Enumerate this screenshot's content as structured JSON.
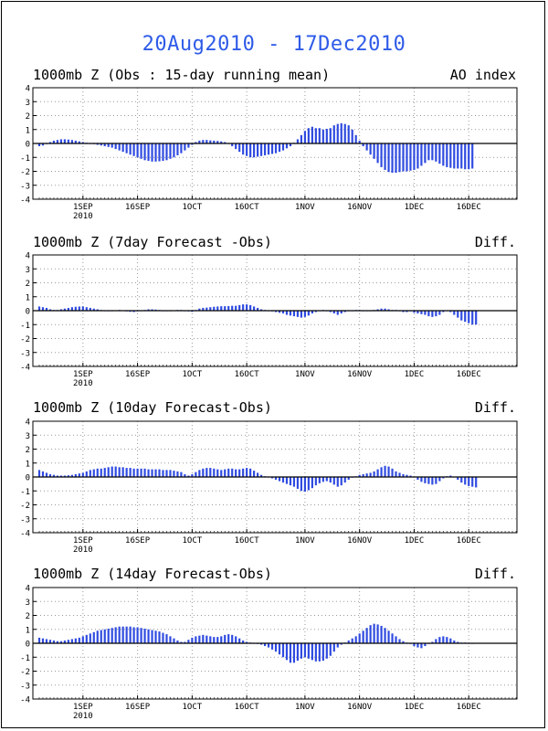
{
  "page_title": "20Aug2010 - 17Dec2010",
  "colors": {
    "bar": "#2f4be0",
    "title": "#2e5be8",
    "grid": "#9a9a9a",
    "axis": "#000000"
  },
  "chart_data": [
    {
      "type": "bar",
      "title": "1000mb Z (Obs : 15-day running mean)",
      "label_right": "AO index",
      "ylim": [
        -4,
        4
      ],
      "yticks": [
        "4",
        "3",
        "2",
        "1",
        "0",
        "-1",
        "-2",
        "-3",
        "-4"
      ],
      "xticks": [
        "1SEP",
        "16SEP",
        "1OCT",
        "16OCT",
        "1NOV",
        "16NOV",
        "1DEC",
        "16DEC"
      ],
      "xtick_sub": "2010",
      "x_start": "2010-08-20",
      "x_end": "2010-12-17",
      "grid": true,
      "values": [
        -0.2,
        -0.15,
        -0.05,
        0.1,
        0.2,
        0.25,
        0.3,
        0.3,
        0.28,
        0.25,
        0.2,
        0.15,
        0.1,
        0.05,
        0.0,
        -0.05,
        -0.1,
        -0.15,
        -0.2,
        -0.25,
        -0.3,
        -0.4,
        -0.5,
        -0.6,
        -0.7,
        -0.8,
        -0.9,
        -1.0,
        -1.1,
        -1.2,
        -1.25,
        -1.3,
        -1.3,
        -1.28,
        -1.25,
        -1.2,
        -1.1,
        -1.0,
        -0.85,
        -0.7,
        -0.5,
        -0.3,
        -0.1,
        0.1,
        0.2,
        0.25,
        0.25,
        0.22,
        0.2,
        0.18,
        0.15,
        0.1,
        0.0,
        -0.2,
        -0.4,
        -0.6,
        -0.8,
        -0.9,
        -1.0,
        -1.0,
        -0.95,
        -0.9,
        -0.85,
        -0.8,
        -0.75,
        -0.7,
        -0.6,
        -0.5,
        -0.35,
        -0.2,
        0.05,
        0.3,
        0.6,
        0.9,
        1.1,
        1.2,
        1.1,
        1.1,
        1.0,
        1.05,
        1.1,
        1.3,
        1.4,
        1.45,
        1.4,
        1.3,
        1.0,
        0.6,
        0.2,
        -0.2,
        -0.5,
        -0.8,
        -1.1,
        -1.4,
        -1.7,
        -1.9,
        -2.05,
        -2.1,
        -2.1,
        -2.05,
        -2.0,
        -2.0,
        -1.95,
        -1.9,
        -1.8,
        -1.6,
        -1.4,
        -1.2,
        -1.2,
        -1.3,
        -1.45,
        -1.6,
        -1.7,
        -1.75,
        -1.8,
        -1.8,
        -1.8,
        -1.85,
        -1.85,
        -1.8
      ]
    },
    {
      "type": "bar",
      "title": "1000mb Z (7day Forecast -Obs)",
      "label_right": "Diff.",
      "ylim": [
        -4,
        4
      ],
      "yticks": [
        "4",
        "3",
        "2",
        "1",
        "0",
        "-1",
        "-2",
        "-3",
        "-4"
      ],
      "xticks": [
        "1SEP",
        "16SEP",
        "1OCT",
        "16OCT",
        "1NOV",
        "16NOV",
        "1DEC",
        "16DEC"
      ],
      "xtick_sub": "2010",
      "x_start": "2010-08-20",
      "x_end": "2010-12-17",
      "grid": true,
      "values": [
        0.3,
        0.25,
        0.2,
        0.1,
        0.05,
        0.05,
        0.1,
        0.15,
        0.2,
        0.25,
        0.28,
        0.3,
        0.3,
        0.25,
        0.2,
        0.15,
        0.1,
        0.05,
        0.0,
        -0.02,
        0.0,
        0.02,
        0.05,
        0.02,
        -0.05,
        -0.08,
        -0.1,
        -0.05,
        0.0,
        0.05,
        0.1,
        0.1,
        0.08,
        0.05,
        0.0,
        0.0,
        0.0,
        0.02,
        0.05,
        0.05,
        0.0,
        -0.05,
        -0.08,
        0.05,
        0.15,
        0.2,
        0.22,
        0.25,
        0.28,
        0.3,
        0.32,
        0.32,
        0.33,
        0.35,
        0.35,
        0.4,
        0.45,
        0.45,
        0.4,
        0.3,
        0.2,
        0.1,
        0.05,
        0.0,
        -0.05,
        -0.1,
        -0.15,
        -0.2,
        -0.3,
        -0.35,
        -0.4,
        -0.45,
        -0.5,
        -0.45,
        -0.35,
        -0.2,
        -0.1,
        0.0,
        0.05,
        0.0,
        -0.1,
        -0.2,
        -0.3,
        -0.2,
        -0.1,
        0.0,
        0.0,
        0.05,
        0.05,
        0.0,
        0.0,
        0.0,
        0.05,
        0.1,
        0.15,
        0.15,
        0.1,
        0.05,
        0.05,
        0.0,
        -0.1,
        -0.1,
        -0.05,
        -0.15,
        -0.2,
        -0.25,
        -0.3,
        -0.4,
        -0.45,
        -0.4,
        -0.3,
        -0.1,
        0.0,
        -0.1,
        -0.3,
        -0.5,
        -0.7,
        -0.8,
        -0.9,
        -1.0,
        -1.0
      ]
    },
    {
      "type": "bar",
      "title": "1000mb Z (10day Forecast-Obs)",
      "label_right": "Diff.",
      "ylim": [
        -4,
        4
      ],
      "yticks": [
        "4",
        "3",
        "2",
        "1",
        "0",
        "-1",
        "-2",
        "-3",
        "-4"
      ],
      "xticks": [
        "1SEP",
        "16SEP",
        "1OCT",
        "16OCT",
        "1NOV",
        "16NOV",
        "1DEC",
        "16DEC"
      ],
      "xtick_sub": "2010",
      "x_start": "2010-08-20",
      "x_end": "2010-12-17",
      "grid": true,
      "values": [
        0.5,
        0.4,
        0.3,
        0.2,
        0.15,
        0.1,
        0.1,
        0.1,
        0.12,
        0.15,
        0.2,
        0.25,
        0.3,
        0.4,
        0.5,
        0.55,
        0.6,
        0.6,
        0.65,
        0.7,
        0.75,
        0.75,
        0.7,
        0.7,
        0.65,
        0.65,
        0.6,
        0.6,
        0.6,
        0.6,
        0.55,
        0.55,
        0.55,
        0.55,
        0.5,
        0.5,
        0.5,
        0.45,
        0.4,
        0.35,
        0.2,
        0.1,
        0.2,
        0.35,
        0.5,
        0.6,
        0.65,
        0.65,
        0.6,
        0.55,
        0.5,
        0.55,
        0.6,
        0.6,
        0.55,
        0.55,
        0.6,
        0.65,
        0.6,
        0.45,
        0.3,
        0.15,
        0.05,
        0.0,
        -0.1,
        -0.2,
        -0.3,
        -0.4,
        -0.5,
        -0.6,
        -0.7,
        -0.85,
        -1.0,
        -1.05,
        -0.95,
        -0.8,
        -0.6,
        -0.45,
        -0.35,
        -0.3,
        -0.4,
        -0.55,
        -0.7,
        -0.6,
        -0.4,
        -0.2,
        -0.05,
        0.05,
        0.15,
        0.2,
        0.25,
        0.3,
        0.4,
        0.55,
        0.7,
        0.8,
        0.75,
        0.6,
        0.4,
        0.3,
        0.2,
        0.15,
        0.1,
        0.0,
        -0.2,
        -0.35,
        -0.45,
        -0.5,
        -0.55,
        -0.5,
        -0.3,
        -0.1,
        0.05,
        0.1,
        0.0,
        -0.2,
        -0.4,
        -0.55,
        -0.65,
        -0.7,
        -0.75
      ]
    },
    {
      "type": "bar",
      "title": "1000mb Z (14day Forecast-Obs)",
      "label_right": "Diff.",
      "ylim": [
        -4,
        4
      ],
      "yticks": [
        "4",
        "3",
        "2",
        "1",
        "0",
        "-1",
        "-2",
        "-3",
        "-4"
      ],
      "xticks": [
        "1SEP",
        "16SEP",
        "1OCT",
        "16OCT",
        "1NOV",
        "16NOV",
        "1DEC",
        "16DEC"
      ],
      "xtick_sub": "2010",
      "x_start": "2010-08-20",
      "x_end": "2010-12-17",
      "grid": true,
      "values": [
        0.4,
        0.35,
        0.3,
        0.25,
        0.2,
        0.15,
        0.15,
        0.2,
        0.25,
        0.3,
        0.35,
        0.4,
        0.5,
        0.6,
        0.7,
        0.8,
        0.9,
        0.95,
        1.0,
        1.05,
        1.1,
        1.15,
        1.2,
        1.2,
        1.2,
        1.2,
        1.15,
        1.15,
        1.1,
        1.05,
        1.0,
        0.95,
        0.9,
        0.85,
        0.75,
        0.65,
        0.5,
        0.35,
        0.2,
        0.1,
        0.1,
        0.25,
        0.4,
        0.5,
        0.55,
        0.6,
        0.55,
        0.5,
        0.45,
        0.45,
        0.5,
        0.6,
        0.65,
        0.6,
        0.5,
        0.35,
        0.2,
        0.1,
        0.05,
        0.0,
        -0.05,
        -0.1,
        -0.2,
        -0.3,
        -0.45,
        -0.6,
        -0.8,
        -1.0,
        -1.2,
        -1.4,
        -1.4,
        -1.25,
        -1.1,
        -1.0,
        -1.1,
        -1.2,
        -1.3,
        -1.3,
        -1.25,
        -1.1,
        -0.9,
        -0.6,
        -0.3,
        -0.1,
        0.05,
        0.2,
        0.35,
        0.5,
        0.7,
        0.9,
        1.1,
        1.3,
        1.4,
        1.35,
        1.25,
        1.1,
        0.9,
        0.7,
        0.5,
        0.3,
        0.15,
        0.05,
        -0.05,
        -0.2,
        -0.3,
        -0.35,
        -0.2,
        -0.05,
        0.1,
        0.3,
        0.45,
        0.5,
        0.45,
        0.35,
        0.2,
        0.1,
        0.05,
        0.05,
        0.0,
        0.0
      ]
    }
  ]
}
